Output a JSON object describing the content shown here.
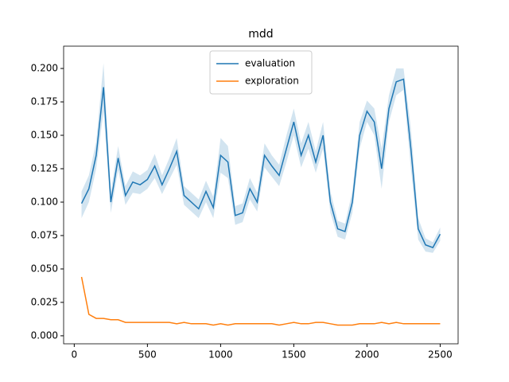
{
  "chart_data": {
    "type": "line",
    "title": "mdd",
    "x": [
      50,
      100,
      150,
      200,
      250,
      300,
      350,
      400,
      450,
      500,
      550,
      600,
      650,
      700,
      750,
      800,
      850,
      900,
      950,
      1000,
      1050,
      1100,
      1150,
      1200,
      1250,
      1300,
      1350,
      1400,
      1450,
      1500,
      1550,
      1600,
      1650,
      1700,
      1750,
      1800,
      1850,
      1900,
      1950,
      2000,
      2050,
      2100,
      2150,
      2200,
      2250,
      2300,
      2350,
      2400,
      2450,
      2500
    ],
    "series": [
      {
        "name": "evaluation",
        "color": "#1f77b4",
        "values": [
          0.099,
          0.11,
          0.135,
          0.186,
          0.1,
          0.133,
          0.105,
          0.115,
          0.113,
          0.117,
          0.127,
          0.113,
          0.125,
          0.138,
          0.105,
          0.1,
          0.095,
          0.108,
          0.096,
          0.135,
          0.13,
          0.09,
          0.092,
          0.11,
          0.1,
          0.135,
          0.127,
          0.12,
          0.14,
          0.16,
          0.135,
          0.15,
          0.13,
          0.15,
          0.1,
          0.08,
          0.078,
          0.1,
          0.15,
          0.168,
          0.16,
          0.125,
          0.17,
          0.19,
          0.192,
          0.14,
          0.08,
          0.068,
          0.066,
          0.076
        ],
        "lower": [
          0.088,
          0.1,
          0.125,
          0.168,
          0.092,
          0.124,
          0.098,
          0.107,
          0.106,
          0.11,
          0.118,
          0.106,
          0.117,
          0.128,
          0.098,
          0.093,
          0.088,
          0.1,
          0.088,
          0.122,
          0.118,
          0.083,
          0.085,
          0.102,
          0.093,
          0.126,
          0.119,
          0.112,
          0.13,
          0.15,
          0.126,
          0.14,
          0.122,
          0.14,
          0.092,
          0.074,
          0.072,
          0.092,
          0.14,
          0.16,
          0.15,
          0.11,
          0.16,
          0.18,
          0.184,
          0.125,
          0.072,
          0.063,
          0.062,
          0.071
        ],
        "upper": [
          0.108,
          0.12,
          0.145,
          0.204,
          0.108,
          0.142,
          0.112,
          0.123,
          0.12,
          0.124,
          0.136,
          0.12,
          0.133,
          0.148,
          0.112,
          0.107,
          0.102,
          0.116,
          0.104,
          0.148,
          0.142,
          0.097,
          0.099,
          0.118,
          0.107,
          0.144,
          0.135,
          0.128,
          0.15,
          0.17,
          0.144,
          0.16,
          0.138,
          0.16,
          0.108,
          0.086,
          0.084,
          0.108,
          0.16,
          0.176,
          0.17,
          0.14,
          0.18,
          0.2,
          0.2,
          0.155,
          0.088,
          0.073,
          0.07,
          0.081
        ]
      },
      {
        "name": "exploration",
        "color": "#ff7f0e",
        "values": [
          0.044,
          0.016,
          0.013,
          0.013,
          0.012,
          0.012,
          0.01,
          0.01,
          0.01,
          0.01,
          0.01,
          0.01,
          0.01,
          0.009,
          0.01,
          0.009,
          0.009,
          0.009,
          0.008,
          0.009,
          0.008,
          0.009,
          0.009,
          0.009,
          0.009,
          0.009,
          0.009,
          0.008,
          0.009,
          0.01,
          0.009,
          0.009,
          0.01,
          0.01,
          0.009,
          0.008,
          0.008,
          0.008,
          0.009,
          0.009,
          0.009,
          0.01,
          0.009,
          0.01,
          0.009,
          0.009,
          0.009,
          0.009,
          0.009,
          0.009
        ]
      }
    ],
    "xlim": [
      -72.5,
      2622.5
    ],
    "xticks": [
      0,
      500,
      1000,
      1500,
      2000,
      2500
    ],
    "ylim": [
      -0.006,
      0.2167
    ],
    "yticks": [
      {
        "value": 0,
        "label": "0.000"
      },
      {
        "value": 0.025,
        "label": "0.025"
      },
      {
        "value": 0.05,
        "label": "0.050"
      },
      {
        "value": 0.075,
        "label": "0.075"
      },
      {
        "value": 0.1,
        "label": "0.100"
      },
      {
        "value": 0.125,
        "label": "0.125"
      },
      {
        "value": 0.15,
        "label": "0.150"
      },
      {
        "value": 0.175,
        "label": "0.175"
      },
      {
        "value": 0.2,
        "label": "0.200"
      }
    ],
    "legend": "upper center",
    "grid": false
  }
}
